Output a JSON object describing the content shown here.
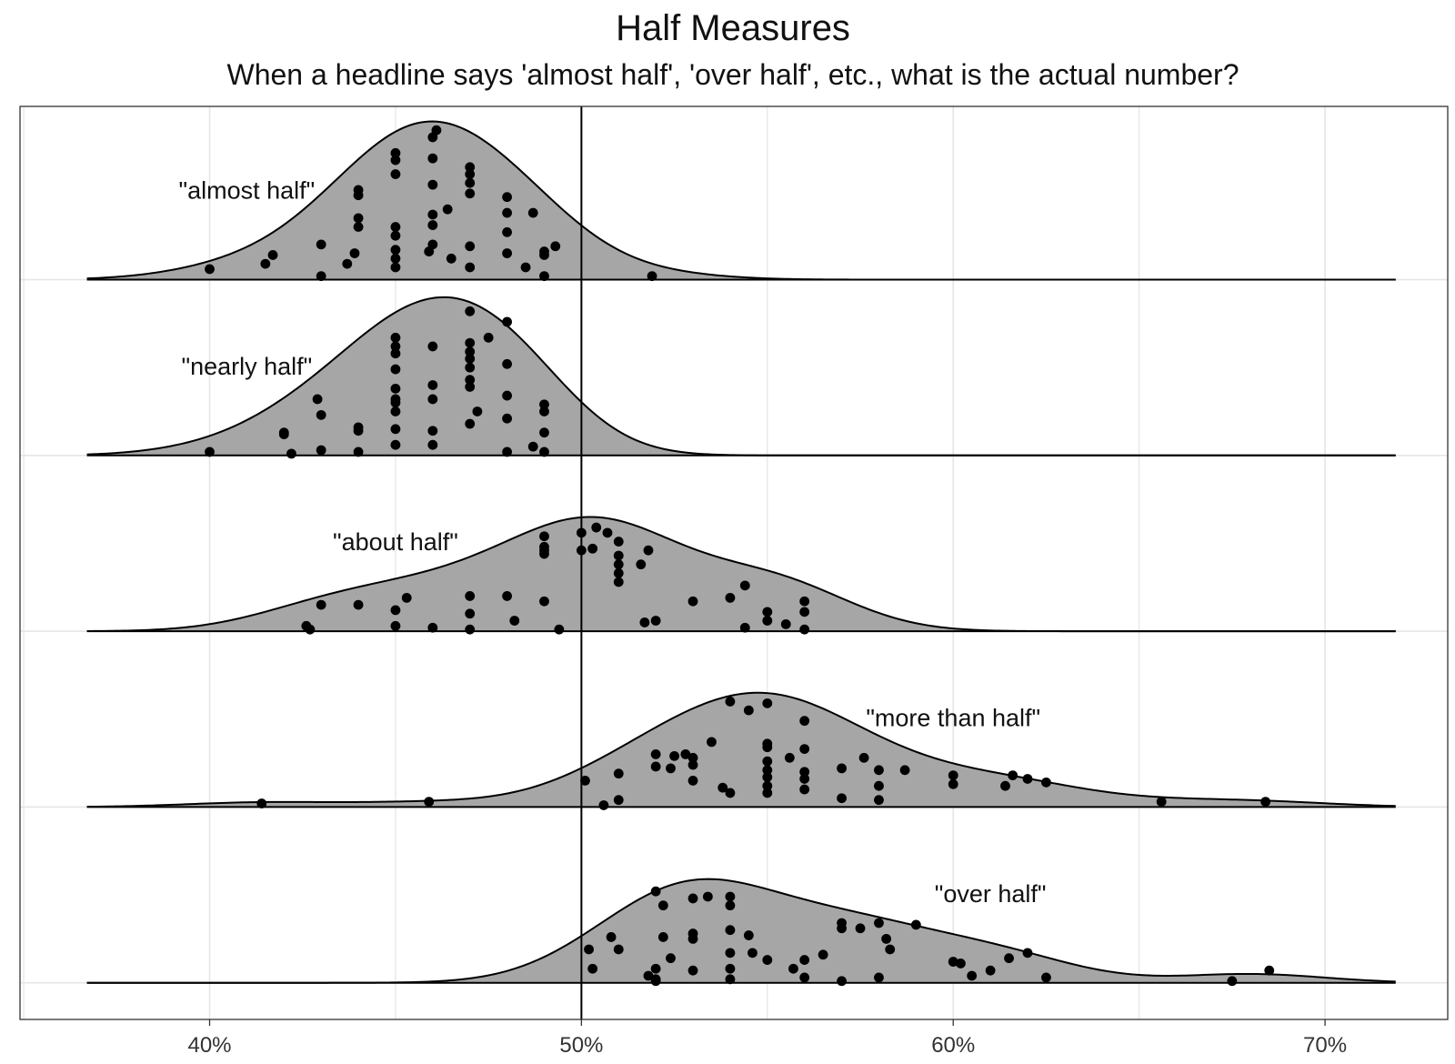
{
  "chart_data": {
    "type": "ridgeline",
    "title": "Half Measures",
    "subtitle": "When a headline says 'almost half', 'over half', etc., what is the actual number?",
    "x_ticks": [
      {
        "value": 40,
        "label": "40%"
      },
      {
        "value": 50,
        "label": "50%"
      },
      {
        "value": 60,
        "label": "60%"
      },
      {
        "value": 70,
        "label": "70%"
      }
    ],
    "xlim": [
      34.9,
      73.3
    ],
    "density_range": [
      36.7,
      71.9
    ],
    "reference_line": 50,
    "colors": {
      "fill": "#a6a6a6",
      "outline": "#000000",
      "point": "#000000",
      "grid": "#e5e5e5",
      "border": "#333333"
    },
    "series": [
      {
        "name": "\"almost half\"",
        "label_x": 41,
        "peak": 0.9,
        "bandwidth": 1.75,
        "points": [
          [
            40,
            0.06
          ],
          [
            41.5,
            0.09
          ],
          [
            41.7,
            0.14
          ],
          [
            43,
            0.02
          ],
          [
            43,
            0.2
          ],
          [
            43.7,
            0.09
          ],
          [
            43.9,
            0.15
          ],
          [
            44,
            0.3
          ],
          [
            44,
            0.35
          ],
          [
            44,
            0.48
          ],
          [
            44,
            0.51
          ],
          [
            45,
            0.07
          ],
          [
            45,
            0.12
          ],
          [
            45,
            0.17
          ],
          [
            45,
            0.3
          ],
          [
            45,
            0.6
          ],
          [
            45,
            0.68
          ],
          [
            45,
            0.72
          ],
          [
            45,
            0.25
          ],
          [
            45.9,
            0.16
          ],
          [
            46,
            0.2
          ],
          [
            46,
            0.31
          ],
          [
            46,
            0.37
          ],
          [
            46,
            0.54
          ],
          [
            46,
            0.69
          ],
          [
            46,
            0.81
          ],
          [
            46.1,
            0.85
          ],
          [
            46.4,
            0.4
          ],
          [
            46.5,
            0.12
          ],
          [
            47,
            0.07
          ],
          [
            47,
            0.19
          ],
          [
            47,
            0.49
          ],
          [
            47,
            0.55
          ],
          [
            47,
            0.6
          ],
          [
            47,
            0.64
          ],
          [
            48,
            0.15
          ],
          [
            48,
            0.27
          ],
          [
            48,
            0.38
          ],
          [
            48,
            0.47
          ],
          [
            48.5,
            0.07
          ],
          [
            48.7,
            0.38
          ],
          [
            49,
            0.02
          ],
          [
            49,
            0.14
          ],
          [
            49,
            0.16
          ],
          [
            49.3,
            0.19
          ],
          [
            51.9,
            0.02
          ]
        ]
      },
      {
        "name": "\"nearly half\"",
        "label_x": 41,
        "peak": 0.9,
        "bandwidth": 1.7,
        "points": [
          [
            40,
            0.02
          ],
          [
            42,
            0.12
          ],
          [
            42,
            0.13
          ],
          [
            42.2,
            0.01
          ],
          [
            42.9,
            0.32
          ],
          [
            43,
            0.03
          ],
          [
            43,
            0.23
          ],
          [
            44,
            0.02
          ],
          [
            44,
            0.14
          ],
          [
            44,
            0.16
          ],
          [
            45,
            0.06
          ],
          [
            45,
            0.15
          ],
          [
            45,
            0.25
          ],
          [
            45,
            0.32
          ],
          [
            45,
            0.38
          ],
          [
            45,
            0.49
          ],
          [
            45,
            0.58
          ],
          [
            45,
            0.62
          ],
          [
            45,
            0.67
          ],
          [
            45,
            0.3
          ],
          [
            46,
            0.06
          ],
          [
            46,
            0.14
          ],
          [
            46,
            0.32
          ],
          [
            46,
            0.4
          ],
          [
            46,
            0.62
          ],
          [
            47,
            0.18
          ],
          [
            47,
            0.39
          ],
          [
            47,
            0.43
          ],
          [
            47,
            0.5
          ],
          [
            47,
            0.55
          ],
          [
            47,
            0.59
          ],
          [
            47,
            0.64
          ],
          [
            47,
            0.82
          ],
          [
            47.2,
            0.25
          ],
          [
            47.5,
            0.67
          ],
          [
            48,
            0.02
          ],
          [
            48,
            0.21
          ],
          [
            48,
            0.34
          ],
          [
            48,
            0.52
          ],
          [
            48,
            0.76
          ],
          [
            48.7,
            0.05
          ],
          [
            49,
            0.02
          ],
          [
            49,
            0.13
          ],
          [
            49,
            0.25
          ],
          [
            49,
            0.29
          ]
        ]
      },
      {
        "name": "\"about half\"",
        "label_x": 45,
        "peak": 0.65,
        "bandwidth": 1.9,
        "points": [
          [
            42.6,
            0.03
          ],
          [
            42.7,
            0.01
          ],
          [
            43,
            0.15
          ],
          [
            44,
            0.15
          ],
          [
            45,
            0.03
          ],
          [
            45,
            0.12
          ],
          [
            45.3,
            0.19
          ],
          [
            46,
            0.02
          ],
          [
            47,
            0.01
          ],
          [
            47,
            0.1
          ],
          [
            47,
            0.2
          ],
          [
            48,
            0.2
          ],
          [
            48.2,
            0.06
          ],
          [
            49,
            0.17
          ],
          [
            49,
            0.46
          ],
          [
            49,
            0.44
          ],
          [
            49,
            0.54
          ],
          [
            49,
            0.48
          ],
          [
            49.4,
            0.01
          ],
          [
            50,
            0.46
          ],
          [
            50,
            0.56
          ],
          [
            50.3,
            0.47
          ],
          [
            50.4,
            0.59
          ],
          [
            50.7,
            0.56
          ],
          [
            51,
            0.28
          ],
          [
            51,
            0.33
          ],
          [
            51,
            0.38
          ],
          [
            51,
            0.43
          ],
          [
            51,
            0.51
          ],
          [
            51.6,
            0.38
          ],
          [
            51.7,
            0.05
          ],
          [
            51.8,
            0.46
          ],
          [
            52,
            0.06
          ],
          [
            53,
            0.17
          ],
          [
            54,
            0.19
          ],
          [
            54.4,
            0.02
          ],
          [
            54.4,
            0.26
          ],
          [
            55,
            0.06
          ],
          [
            55,
            0.11
          ],
          [
            55.5,
            0.04
          ],
          [
            56,
            0.01
          ],
          [
            56,
            0.11
          ],
          [
            56,
            0.17
          ]
        ]
      },
      {
        "name": "\"more than half\"",
        "label_x": 60,
        "peak": 0.65,
        "bandwidth": 2.0,
        "points": [
          [
            41.4,
            0.02
          ],
          [
            45.9,
            0.03
          ],
          [
            50.1,
            0.15
          ],
          [
            50.6,
            0.01
          ],
          [
            51,
            0.04
          ],
          [
            51,
            0.19
          ],
          [
            52,
            0.3
          ],
          [
            52,
            0.23
          ],
          [
            52.4,
            0.22
          ],
          [
            52.5,
            0.29
          ],
          [
            52.8,
            0.3
          ],
          [
            53,
            0.15
          ],
          [
            53,
            0.24
          ],
          [
            53,
            0.28
          ],
          [
            53.5,
            0.37
          ],
          [
            53.8,
            0.11
          ],
          [
            54,
            0.08
          ],
          [
            54,
            0.6
          ],
          [
            54.5,
            0.55
          ],
          [
            55,
            0.08
          ],
          [
            55,
            0.12
          ],
          [
            55,
            0.17
          ],
          [
            55,
            0.21
          ],
          [
            55,
            0.26
          ],
          [
            55,
            0.34
          ],
          [
            55,
            0.36
          ],
          [
            55,
            0.59
          ],
          [
            55.6,
            0.28
          ],
          [
            56,
            0.1
          ],
          [
            56,
            0.16
          ],
          [
            56,
            0.2
          ],
          [
            56,
            0.49
          ],
          [
            56,
            0.33
          ],
          [
            57,
            0.05
          ],
          [
            57,
            0.22
          ],
          [
            57.6,
            0.28
          ],
          [
            58,
            0.04
          ],
          [
            58,
            0.12
          ],
          [
            58,
            0.21
          ],
          [
            58.7,
            0.21
          ],
          [
            60,
            0.18
          ],
          [
            60,
            0.13
          ],
          [
            61.4,
            0.12
          ],
          [
            61.6,
            0.18
          ],
          [
            62,
            0.16
          ],
          [
            62.5,
            0.14
          ],
          [
            65.6,
            0.03
          ],
          [
            68.4,
            0.03
          ]
        ]
      },
      {
        "name": "\"over half\"",
        "label_x": 61,
        "peak": 0.59,
        "bandwidth": 1.9,
        "points": [
          [
            50.2,
            0.19
          ],
          [
            50.3,
            0.08
          ],
          [
            50.8,
            0.26
          ],
          [
            51,
            0.19
          ],
          [
            51.8,
            0.04
          ],
          [
            52,
            0.01
          ],
          [
            52,
            0.08
          ],
          [
            52.2,
            0.44
          ],
          [
            52,
            0.52
          ],
          [
            52,
            0.02
          ],
          [
            52.2,
            0.26
          ],
          [
            52.4,
            0.14
          ],
          [
            53,
            0.25
          ],
          [
            53,
            0.48
          ],
          [
            53,
            0.28
          ],
          [
            53,
            0.07
          ],
          [
            53.4,
            0.49
          ],
          [
            54,
            0.08
          ],
          [
            54,
            0.17
          ],
          [
            54,
            0.3
          ],
          [
            54,
            0.44
          ],
          [
            54,
            0.49
          ],
          [
            54,
            0.02
          ],
          [
            54.5,
            0.27
          ],
          [
            54.6,
            0.17
          ],
          [
            55,
            0.13
          ],
          [
            55.7,
            0.08
          ],
          [
            56,
            0.03
          ],
          [
            56,
            0.13
          ],
          [
            56.5,
            0.16
          ],
          [
            57,
            0.01
          ],
          [
            57,
            0.31
          ],
          [
            57,
            0.34
          ],
          [
            57.5,
            0.31
          ],
          [
            58,
            0.03
          ],
          [
            58,
            0.34
          ],
          [
            58.2,
            0.25
          ],
          [
            58.3,
            0.19
          ],
          [
            59,
            0.33
          ],
          [
            60,
            0.12
          ],
          [
            60.2,
            0.11
          ],
          [
            60.5,
            0.04
          ],
          [
            61,
            0.07
          ],
          [
            61.5,
            0.14
          ],
          [
            62,
            0.17
          ],
          [
            62.5,
            0.03
          ],
          [
            67.5,
            0.01
          ],
          [
            68.5,
            0.07
          ]
        ]
      }
    ]
  }
}
